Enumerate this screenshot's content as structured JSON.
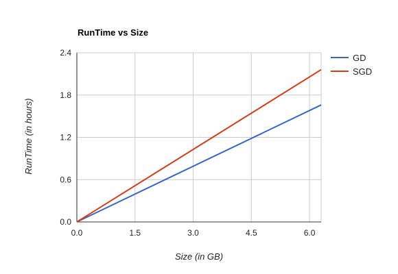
{
  "chart_data": {
    "type": "line",
    "title": "RunTime vs Size",
    "xlabel": "Size (in GB)",
    "ylabel": "RunTime (in hours)",
    "xlim": [
      0,
      6.3
    ],
    "ylim": [
      0,
      2.4
    ],
    "xticks": [
      0,
      1.5,
      3,
      4.5,
      6
    ],
    "xtick_labels": [
      "0.0",
      "1.5",
      "3.0",
      "4.5",
      "6.0"
    ],
    "yticks": [
      0,
      0.6,
      1.2,
      1.8,
      2.4
    ],
    "ytick_labels": [
      "0.0",
      "0.6",
      "1.2",
      "1.8",
      "2.4"
    ],
    "grid": true,
    "legend_position": "right",
    "series": [
      {
        "name": "GD",
        "color": "#3366cc",
        "points": [
          [
            0,
            0
          ],
          [
            6.3,
            1.66
          ]
        ]
      },
      {
        "name": "SGD",
        "color": "#dc3912",
        "points": [
          [
            0,
            0
          ],
          [
            6.3,
            2.16
          ]
        ]
      }
    ]
  }
}
